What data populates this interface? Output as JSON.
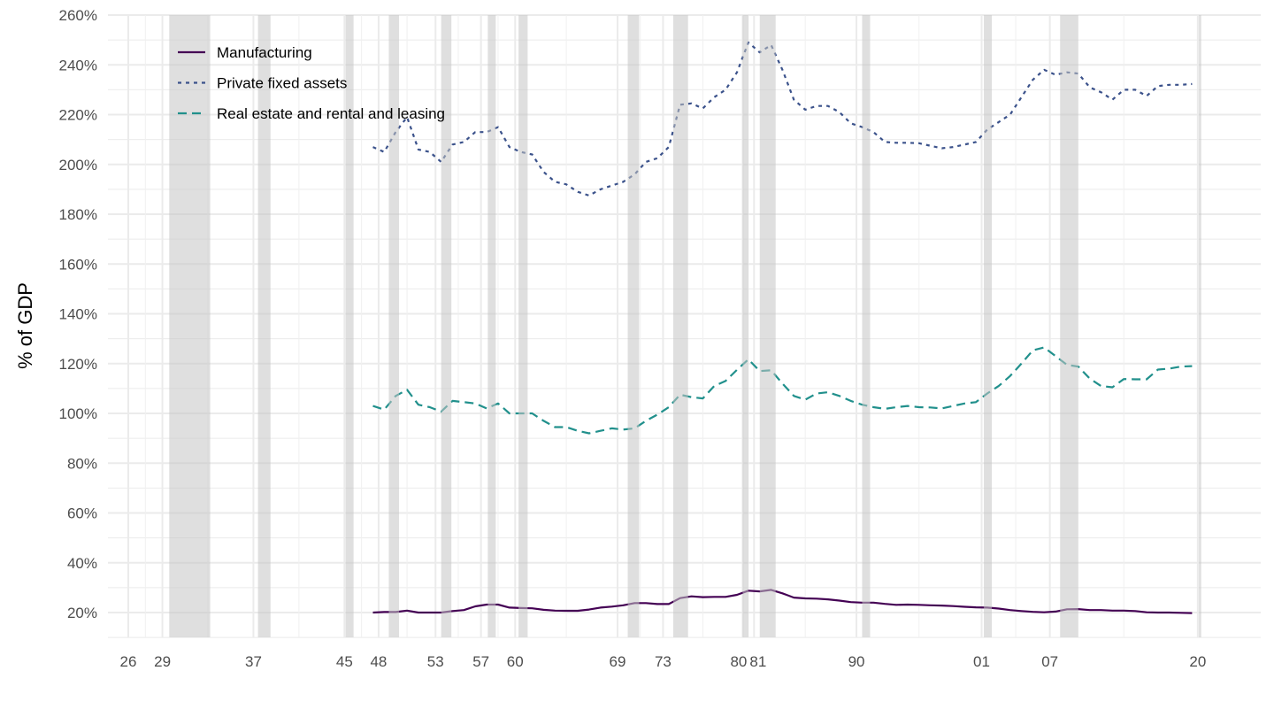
{
  "chart_data": {
    "type": "line",
    "title": "",
    "xlabel": "",
    "ylabel": "% of GDP",
    "ylim": [
      10,
      260
    ],
    "xlim": [
      1924.2,
      2024.3
    ],
    "y_ticks": [
      20,
      40,
      60,
      80,
      100,
      120,
      140,
      160,
      180,
      200,
      220,
      240,
      260
    ],
    "y_tick_labels": [
      "20%",
      "40%",
      "60%",
      "80%",
      "100%",
      "120%",
      "140%",
      "160%",
      "180%",
      "200%",
      "220%",
      "240%",
      "260%"
    ],
    "x_ticks": [
      1926,
      1929,
      1937,
      1945,
      1948,
      1953,
      1957,
      1960,
      1969,
      1973,
      1980,
      1981,
      1990,
      2001,
      2007,
      2020
    ],
    "x_tick_labels": [
      "26",
      "29",
      "37",
      "45",
      "48",
      "53",
      "57",
      "60",
      "69",
      "73",
      "80",
      "81",
      "90",
      "01",
      "07",
      "20"
    ],
    "grid": true,
    "legend_position": "top-left",
    "recessions": [
      [
        1929.6,
        1933.2
      ],
      [
        1937.4,
        1938.5
      ],
      [
        1945.1,
        1945.8
      ],
      [
        1948.9,
        1949.8
      ],
      [
        1953.5,
        1954.4
      ],
      [
        1957.6,
        1958.3
      ],
      [
        1960.3,
        1961.1
      ],
      [
        1969.9,
        1970.9
      ],
      [
        1973.9,
        1975.2
      ],
      [
        1980.0,
        1980.5
      ],
      [
        1981.5,
        1982.9
      ],
      [
        1990.5,
        1991.2
      ],
      [
        2001.2,
        2001.9
      ],
      [
        2007.9,
        2009.5
      ],
      [
        2020.1,
        2020.3
      ]
    ],
    "x": [
      1947,
      1948,
      1949,
      1950,
      1951,
      1952,
      1953,
      1954,
      1955,
      1956,
      1957,
      1958,
      1959,
      1960,
      1961,
      1962,
      1963,
      1964,
      1965,
      1966,
      1967,
      1968,
      1969,
      1970,
      1971,
      1972,
      1973,
      1974,
      1975,
      1976,
      1977,
      1978,
      1979,
      1980,
      1981,
      1982,
      1983,
      1984,
      1985,
      1986,
      1987,
      1988,
      1989,
      1990,
      1991,
      1992,
      1993,
      1994,
      1995,
      1996,
      1997,
      1998,
      1999,
      2000,
      2001,
      2002,
      2003,
      2004,
      2005,
      2006,
      2007,
      2008,
      2009,
      2010,
      2011,
      2012,
      2013,
      2014,
      2015,
      2016,
      2017,
      2018,
      2019
    ],
    "series": [
      {
        "name": "Manufacturing",
        "color": "#440154",
        "dash": "solid",
        "values": [
          20,
          20.2,
          20.2,
          20.8,
          20,
          20,
          20,
          20.6,
          21,
          22.5,
          23.2,
          23.2,
          22,
          21.8,
          21.7,
          21.1,
          20.8,
          20.7,
          20.7,
          21.2,
          22,
          22.4,
          22.9,
          23.8,
          23.8,
          23.4,
          23.4,
          25.8,
          26.5,
          26.2,
          26.3,
          26.3,
          27.1,
          28.8,
          28.5,
          29.1,
          27.7,
          26,
          25.7,
          25.6,
          25.3,
          24.8,
          24.2,
          24,
          24,
          23.5,
          23.1,
          23.2,
          23.1,
          22.9,
          22.8,
          22.6,
          22.3,
          22.1,
          22,
          21.6,
          21,
          20.6,
          20.3,
          20.1,
          20.4,
          21.3,
          21.4,
          21,
          21,
          20.8,
          20.8,
          20.6,
          20.1,
          20,
          20,
          19.9,
          19.8
        ]
      },
      {
        "name": "Private fixed assets",
        "color": "#3b528b",
        "dash": "dotted",
        "values": [
          207,
          205,
          213,
          219,
          206,
          205,
          201,
          208,
          209,
          213,
          213,
          215,
          207,
          205,
          204,
          197,
          193,
          192,
          189,
          187.5,
          190,
          191.5,
          193,
          196,
          201,
          202.5,
          207,
          224,
          224.5,
          222.5,
          227,
          230,
          237,
          249,
          245,
          248,
          238,
          226,
          222,
          223.5,
          223.5,
          221,
          216.5,
          215,
          213,
          209,
          208.7,
          208.7,
          208.5,
          207.5,
          206.5,
          207,
          208,
          209,
          214,
          217,
          220,
          227,
          234,
          238,
          236,
          237,
          236.5,
          231,
          229,
          226,
          230,
          230,
          227.5,
          231.5,
          232,
          232,
          232.3
        ]
      },
      {
        "name": "Real estate and rental and leasing",
        "color": "#21908c",
        "dash": "dashed",
        "values": [
          103,
          101.5,
          107,
          109.5,
          103.5,
          102.5,
          100.7,
          105,
          104.5,
          104,
          102,
          104,
          100,
          100,
          100,
          97,
          94.5,
          94.5,
          93,
          92,
          93,
          94,
          93.5,
          94,
          97,
          99.5,
          102.5,
          107.5,
          106.5,
          106,
          111,
          113,
          117.5,
          121.7,
          117,
          117.3,
          112,
          107,
          105.5,
          108,
          108.5,
          107,
          105,
          103.5,
          102.5,
          101.8,
          102.5,
          103,
          102.5,
          102.4,
          102,
          103,
          104,
          104.5,
          108,
          111,
          115,
          120,
          125.3,
          126.5,
          123,
          119.5,
          118.8,
          114,
          111,
          110.5,
          113.8,
          113.7,
          113.7,
          117.6,
          118,
          118.8,
          119
        ]
      }
    ]
  }
}
